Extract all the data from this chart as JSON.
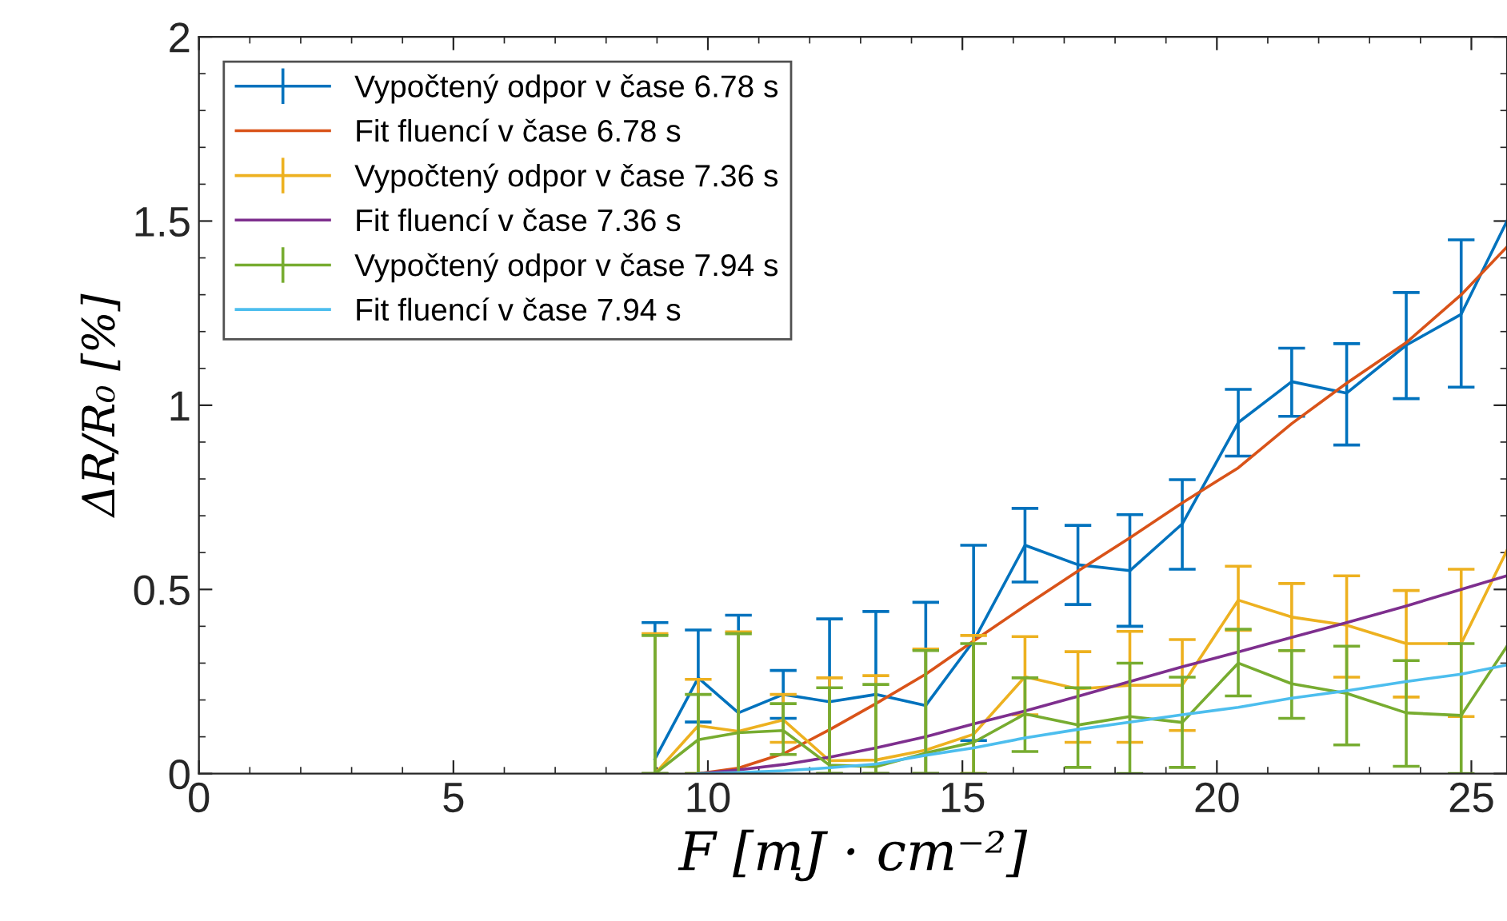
{
  "chart_data": {
    "type": "line",
    "xlabel": "F [mJ · cm⁻²]",
    "ylabel": "ΔR/R₀ [%]",
    "xlim": [
      0,
      25.7
    ],
    "ylim": [
      0,
      2
    ],
    "xticks": [
      0,
      5,
      10,
      15,
      20,
      25
    ],
    "yticks": [
      0,
      0.5,
      1,
      1.5,
      2
    ],
    "grid": false,
    "legend": "top left",
    "marker": "none",
    "line_style": "solid",
    "x": [
      8.96,
      9.81,
      10.6,
      11.48,
      12.39,
      13.3,
      14.28,
      15.22,
      16.23,
      17.27,
      18.29,
      19.32,
      20.42,
      21.47,
      22.55,
      23.72,
      24.8,
      25.7
    ],
    "series": [
      {
        "name": "Vypočtený odpor v čase 6.78 s",
        "color": "#0072bd",
        "values": [
          0.04,
          0.26,
          0.165,
          0.215,
          0.195,
          0.215,
          0.185,
          0.36,
          0.62,
          0.567,
          0.551,
          0.678,
          0.953,
          1.064,
          1.033,
          1.163,
          1.247,
          1.5
        ],
        "errors": [
          [
            0,
            0.41
          ],
          [
            0.14,
            0.39
          ],
          [
            0,
            0.43
          ],
          [
            0.15,
            0.28
          ],
          [
            0,
            0.42
          ],
          [
            0,
            0.44
          ],
          [
            0,
            0.465
          ],
          [
            0.09,
            0.62
          ],
          [
            0.52,
            0.72
          ],
          [
            0.459,
            0.674
          ],
          [
            0.4,
            0.703
          ],
          [
            0.555,
            0.798
          ],
          [
            0.862,
            1.043
          ],
          [
            0.97,
            1.155
          ],
          [
            0.892,
            1.167
          ],
          [
            1.018,
            1.306
          ],
          [
            1.049,
            1.449
          ],
          null
        ]
      },
      {
        "name": "Fit fluencí v čase 6.78 s",
        "color": "#d95319",
        "x": [
          9.8,
          10.6,
          11.5,
          12.4,
          13.3,
          14.28,
          15.22,
          16.23,
          17.27,
          18.29,
          19.32,
          20.42,
          21.47,
          22.55,
          23.72,
          24.8,
          25.7
        ],
        "values": [
          0,
          0.015,
          0.055,
          0.12,
          0.19,
          0.27,
          0.36,
          0.455,
          0.55,
          0.64,
          0.735,
          0.83,
          0.95,
          1.06,
          1.17,
          1.3,
          1.43
        ]
      },
      {
        "name": "Vypočtený odpor v čase 7.36 s",
        "color": "#edb120",
        "values": [
          0,
          0.13,
          0.115,
          0.146,
          0.035,
          0.037,
          0.064,
          0.107,
          0.263,
          0.23,
          0.24,
          0.24,
          0.471,
          0.425,
          0.403,
          0.353,
          0.353,
          0.606
        ],
        "errors": [
          [
            0,
            0.38
          ],
          [
            0,
            0.256
          ],
          [
            0,
            0.385
          ],
          [
            0.085,
            0.215
          ],
          [
            0,
            0.26
          ],
          [
            0,
            0.266
          ],
          [
            0,
            0.338
          ],
          [
            0,
            0.375
          ],
          [
            0.16,
            0.372
          ],
          [
            0.085,
            0.331
          ],
          [
            0.085,
            0.386
          ],
          [
            0.117,
            0.364
          ],
          [
            0.389,
            0.563
          ],
          [
            0.334,
            0.516
          ],
          [
            0.262,
            0.537
          ],
          [
            0.208,
            0.497
          ],
          [
            0.155,
            0.555
          ],
          null
        ]
      },
      {
        "name": "Fit fluencí v čase 7.36 s",
        "color": "#7e2f8e",
        "x": [
          9.8,
          10.6,
          11.5,
          12.4,
          13.3,
          14.28,
          15.22,
          16.23,
          17.27,
          18.29,
          19.32,
          20.42,
          21.47,
          22.55,
          23.72,
          24.8,
          25.7
        ],
        "values": [
          0,
          0.01,
          0.025,
          0.045,
          0.07,
          0.1,
          0.135,
          0.17,
          0.21,
          0.25,
          0.29,
          0.33,
          0.37,
          0.41,
          0.455,
          0.5,
          0.537
        ]
      },
      {
        "name": "Vypočtený odpor v čase 7.94 s",
        "color": "#77ac30",
        "values": [
          0,
          0.092,
          0.111,
          0.117,
          0.023,
          0.019,
          0.056,
          0.085,
          0.162,
          0.132,
          0.155,
          0.139,
          0.3,
          0.244,
          0.218,
          0.165,
          0.158,
          0.346
        ],
        "errors": [
          [
            0,
            0.375
          ],
          [
            0,
            0.215
          ],
          [
            0,
            0.38
          ],
          [
            0.052,
            0.19
          ],
          [
            0,
            0.233
          ],
          [
            0,
            0.242
          ],
          [
            0,
            0.334
          ],
          [
            0,
            0.353
          ],
          [
            0.06,
            0.26
          ],
          [
            0.017,
            0.233
          ],
          [
            0,
            0.3
          ],
          [
            0.017,
            0.262
          ],
          [
            0.211,
            0.392
          ],
          [
            0.15,
            0.334
          ],
          [
            0.078,
            0.346
          ],
          [
            0.02,
            0.307
          ],
          [
            0,
            0.353
          ],
          null
        ]
      },
      {
        "name": "Fit fluencí v čase 7.94 s",
        "color": "#4dbeee",
        "x": [
          9.8,
          10.6,
          11.5,
          12.4,
          13.3,
          14.28,
          15.22,
          16.23,
          17.27,
          18.29,
          19.32,
          20.42,
          21.47,
          22.55,
          23.72,
          24.8,
          25.7
        ],
        "values": [
          0,
          0.003,
          0.008,
          0.016,
          0.026,
          0.05,
          0.07,
          0.097,
          0.12,
          0.14,
          0.16,
          0.18,
          0.205,
          0.225,
          0.25,
          0.27,
          0.295
        ]
      }
    ]
  }
}
